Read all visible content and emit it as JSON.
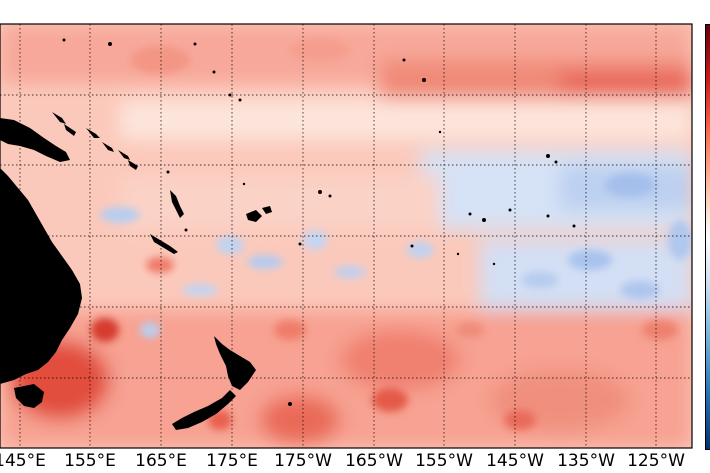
{
  "map": {
    "type": "sea-surface anomaly field",
    "projection": "equirectangular",
    "region": "Southwest Pacific",
    "colormap": [
      "#67000d",
      "#cb181d",
      "#fb6a4a",
      "#fcbba1",
      "#ffffff",
      "#c6dbef",
      "#6baed6",
      "#2171b5",
      "#08306b"
    ],
    "land_color": "#000000",
    "gridlines": "dotted",
    "lon_ticks": [
      "145°E",
      "155°E",
      "165°E",
      "175°E",
      "175°W",
      "165°W",
      "155°W",
      "145°W",
      "135°W",
      "125°W"
    ]
  }
}
